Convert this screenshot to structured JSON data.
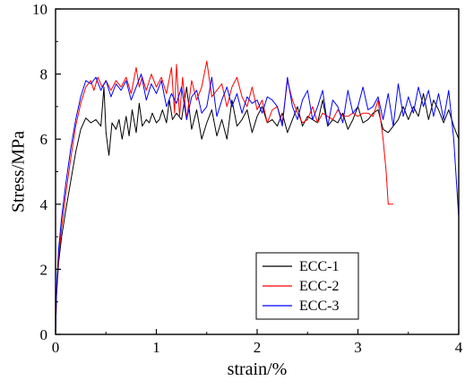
{
  "chart_data": {
    "type": "line",
    "xlabel": "strain/%",
    "ylabel": "Stress/MPa",
    "xlim": [
      0,
      4
    ],
    "ylim": [
      0,
      10
    ],
    "x_ticks": [
      0,
      1,
      2,
      3,
      4
    ],
    "y_ticks": [
      0,
      2,
      4,
      6,
      8,
      10
    ],
    "grid": false,
    "legend_position": "bottom-right",
    "series": [
      {
        "name": "ECC-1",
        "color": "#000000",
        "x": [
          0,
          0.01,
          0.03,
          0.06,
          0.1,
          0.15,
          0.2,
          0.25,
          0.3,
          0.35,
          0.4,
          0.45,
          0.48,
          0.5,
          0.53,
          0.56,
          0.6,
          0.63,
          0.66,
          0.7,
          0.73,
          0.76,
          0.8,
          0.83,
          0.86,
          0.9,
          0.93,
          0.96,
          1.0,
          1.03,
          1.06,
          1.1,
          1.13,
          1.16,
          1.2,
          1.25,
          1.3,
          1.35,
          1.4,
          1.45,
          1.5,
          1.55,
          1.6,
          1.65,
          1.7,
          1.75,
          1.8,
          1.85,
          1.9,
          1.95,
          2.0,
          2.05,
          2.1,
          2.15,
          2.2,
          2.25,
          2.3,
          2.35,
          2.4,
          2.45,
          2.5,
          2.55,
          2.6,
          2.65,
          2.7,
          2.75,
          2.8,
          2.85,
          2.9,
          2.95,
          3.0,
          3.05,
          3.1,
          3.15,
          3.2,
          3.25,
          3.3,
          3.35,
          3.4,
          3.45,
          3.5,
          3.55,
          3.6,
          3.65,
          3.7,
          3.75,
          3.8,
          3.85,
          3.9,
          3.95,
          4.0
        ],
        "y": [
          0,
          1.2,
          2.2,
          3.0,
          3.8,
          4.7,
          5.6,
          6.3,
          6.65,
          6.5,
          6.6,
          6.4,
          7.6,
          6.2,
          5.5,
          6.5,
          6.3,
          6.6,
          6.0,
          6.7,
          6.1,
          6.9,
          6.2,
          7.1,
          6.4,
          6.6,
          6.5,
          6.8,
          6.5,
          6.6,
          6.9,
          6.5,
          7.2,
          6.6,
          6.8,
          6.6,
          7.6,
          6.3,
          6.9,
          6.0,
          6.5,
          6.9,
          6.1,
          6.6,
          6.0,
          7.2,
          6.4,
          6.6,
          6.9,
          6.2,
          6.7,
          7.0,
          6.5,
          6.6,
          6.4,
          6.8,
          6.2,
          6.6,
          7.0,
          6.4,
          6.7,
          6.6,
          6.5,
          7.2,
          6.4,
          6.6,
          6.5,
          6.8,
          6.3,
          6.6,
          7.0,
          6.5,
          6.6,
          6.8,
          6.9,
          6.3,
          6.2,
          6.4,
          6.6,
          7.0,
          6.6,
          7.0,
          6.7,
          7.4,
          6.6,
          7.2,
          6.9,
          6.5,
          6.9,
          6.4,
          6.0
        ]
      },
      {
        "name": "ECC-2",
        "color": "#ff0000",
        "x": [
          0,
          0.01,
          0.03,
          0.06,
          0.1,
          0.15,
          0.2,
          0.25,
          0.3,
          0.35,
          0.38,
          0.42,
          0.46,
          0.5,
          0.55,
          0.6,
          0.65,
          0.7,
          0.75,
          0.8,
          0.83,
          0.86,
          0.9,
          0.95,
          1.0,
          1.05,
          1.1,
          1.15,
          1.18,
          1.2,
          1.23,
          1.26,
          1.3,
          1.35,
          1.4,
          1.45,
          1.5,
          1.55,
          1.6,
          1.65,
          1.7,
          1.75,
          1.8,
          1.85,
          1.9,
          1.95,
          2.0,
          2.05,
          2.1,
          2.15,
          2.2,
          2.25,
          2.3,
          2.35,
          2.4,
          2.45,
          2.5,
          2.55,
          2.6,
          2.65,
          2.7,
          2.75,
          2.8,
          2.85,
          2.9,
          2.95,
          3.0,
          3.05,
          3.1,
          3.15,
          3.2,
          3.25,
          3.28,
          3.3,
          3.35
        ],
        "y": [
          0,
          1.3,
          2.4,
          3.3,
          4.3,
          5.4,
          6.4,
          7.1,
          7.6,
          7.8,
          7.5,
          7.9,
          7.6,
          7.8,
          7.5,
          7.8,
          7.6,
          7.9,
          7.4,
          8.2,
          7.6,
          7.9,
          7.5,
          8.0,
          7.6,
          7.9,
          7.4,
          8.2,
          6.8,
          8.3,
          6.7,
          7.9,
          6.6,
          7.8,
          7.2,
          7.6,
          8.4,
          7.3,
          7.5,
          7.7,
          7.0,
          7.6,
          7.9,
          7.3,
          7.0,
          7.6,
          6.9,
          7.2,
          6.5,
          6.9,
          7.0,
          6.5,
          7.8,
          7.2,
          6.8,
          6.5,
          6.6,
          7.0,
          6.5,
          6.8,
          6.7,
          6.6,
          6.9,
          6.7,
          6.7,
          6.8,
          6.7,
          6.8,
          6.8,
          6.7,
          7.2,
          6.0,
          5.0,
          4.0,
          4.0
        ]
      },
      {
        "name": "ECC-3",
        "color": "#0000ff",
        "x": [
          0,
          0.01,
          0.03,
          0.06,
          0.1,
          0.15,
          0.2,
          0.25,
          0.3,
          0.35,
          0.4,
          0.45,
          0.5,
          0.55,
          0.6,
          0.65,
          0.7,
          0.75,
          0.8,
          0.85,
          0.9,
          0.95,
          1.0,
          1.05,
          1.1,
          1.15,
          1.2,
          1.25,
          1.3,
          1.35,
          1.4,
          1.45,
          1.5,
          1.55,
          1.6,
          1.65,
          1.7,
          1.75,
          1.8,
          1.85,
          1.9,
          1.95,
          2.0,
          2.05,
          2.1,
          2.15,
          2.2,
          2.25,
          2.3,
          2.35,
          2.4,
          2.45,
          2.5,
          2.55,
          2.6,
          2.65,
          2.7,
          2.75,
          2.8,
          2.85,
          2.9,
          2.95,
          3.0,
          3.05,
          3.1,
          3.15,
          3.2,
          3.25,
          3.3,
          3.35,
          3.4,
          3.45,
          3.5,
          3.55,
          3.6,
          3.65,
          3.7,
          3.75,
          3.8,
          3.85,
          3.9,
          3.95,
          4.0
        ],
        "y": [
          0,
          1.4,
          2.6,
          3.6,
          4.6,
          5.7,
          6.6,
          7.3,
          7.8,
          7.7,
          7.9,
          7.5,
          7.8,
          7.3,
          7.7,
          7.5,
          7.8,
          7.2,
          7.6,
          8.0,
          7.2,
          7.7,
          7.4,
          7.8,
          7.0,
          7.4,
          7.1,
          7.6,
          6.6,
          7.3,
          7.5,
          6.8,
          7.0,
          7.9,
          6.7,
          7.2,
          7.6,
          7.0,
          7.4,
          6.8,
          7.3,
          7.1,
          7.2,
          6.8,
          7.3,
          7.2,
          7.0,
          6.4,
          7.9,
          7.0,
          6.6,
          7.2,
          7.5,
          6.6,
          7.0,
          7.5,
          6.4,
          7.2,
          7.0,
          6.5,
          7.5,
          6.8,
          7.0,
          7.6,
          6.9,
          7.0,
          7.3,
          6.6,
          7.4,
          6.4,
          7.7,
          6.7,
          7.3,
          6.8,
          7.6,
          7.0,
          7.5,
          6.7,
          7.4,
          6.6,
          7.5,
          6.0,
          3.6
        ]
      }
    ]
  }
}
